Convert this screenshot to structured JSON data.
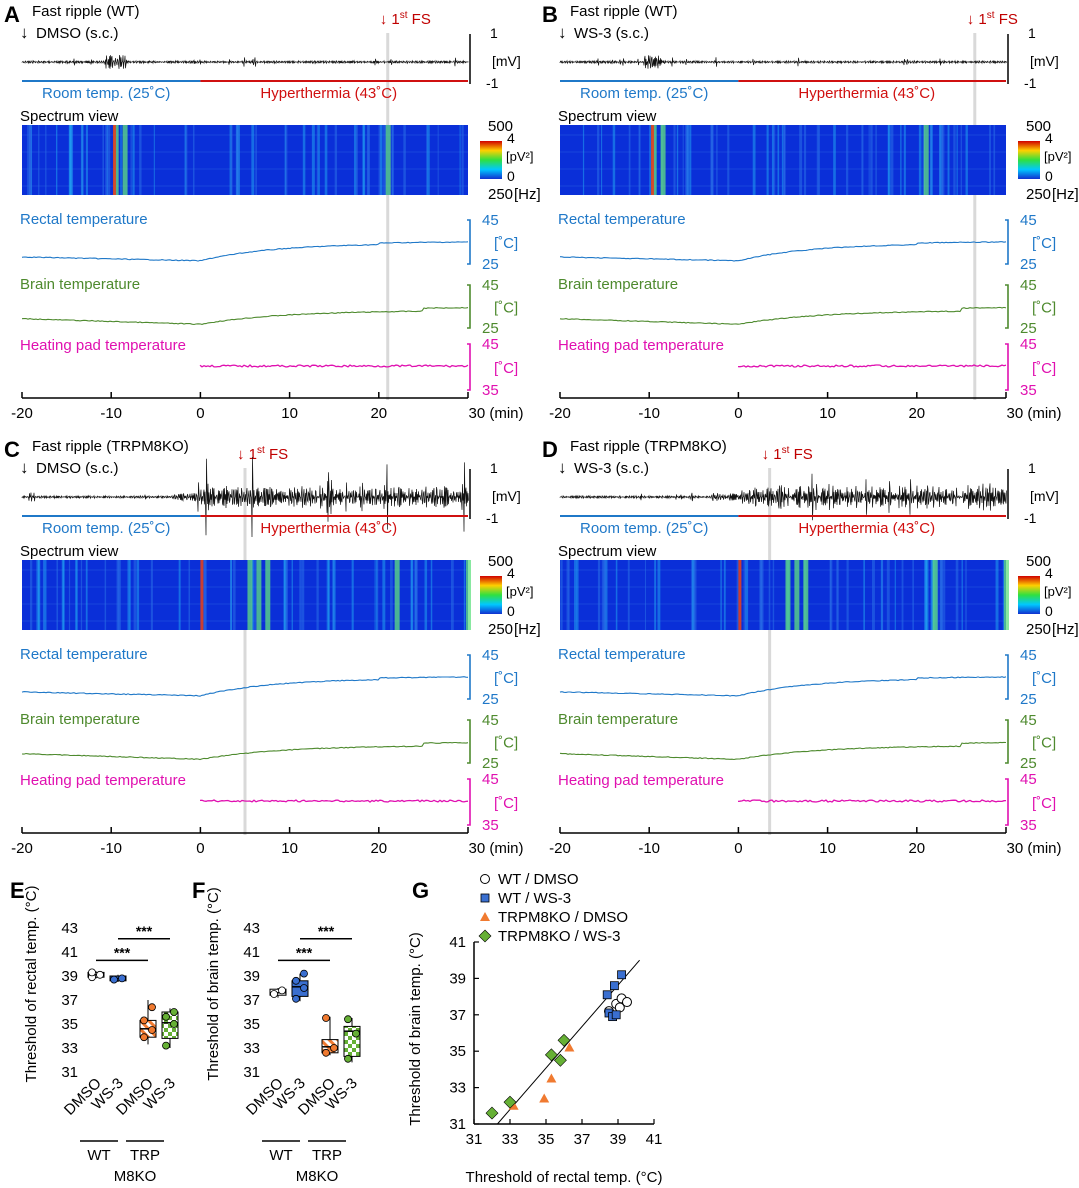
{
  "panels": [
    {
      "letter": "A",
      "title": "Fast ripple (WT)",
      "drug": "DMSO (s.c.)",
      "fs_label": "1",
      "fs_sup": "st",
      "fs_suffix": " FS",
      "fs_time": 21,
      "condition": "wt",
      "scale_mv_top": "1",
      "scale_mv_bottom": "-1",
      "unit_mv": "[mV]",
      "room": "Room temp. (25˚C)",
      "hyper": "Hyperthermia (43˚C)",
      "spectrum_title": "Spectrum view",
      "spec_top": "500",
      "spec_bottom": "250",
      "spec_unit": "[Hz]",
      "cbar_top": "4",
      "cbar_bottom": "0",
      "cbar_unit": "[pV²]",
      "rectal": "Rectal temperature",
      "brain": "Brain temperature",
      "pad": "Heating pad temperature",
      "t45": "45",
      "t25": "25",
      "t35": "35",
      "deg": "[˚C]",
      "x_ticks": [
        "-20",
        "-10",
        "0",
        "10",
        "20",
        "30 (min)"
      ]
    },
    {
      "letter": "B",
      "title": "Fast ripple (WT)",
      "drug": "WS-3 (s.c.)",
      "fs_label": "1",
      "fs_sup": "st",
      "fs_suffix": " FS",
      "fs_time": 26.5,
      "condition": "wt",
      "scale_mv_top": "1",
      "scale_mv_bottom": "-1",
      "unit_mv": "[mV]",
      "room": "Room temp. (25˚C)",
      "hyper": "Hyperthermia (43˚C)",
      "spectrum_title": "Spectrum view",
      "spec_top": "500",
      "spec_bottom": "250",
      "spec_unit": "[Hz]",
      "cbar_top": "4",
      "cbar_bottom": "0",
      "cbar_unit": "[pV²]",
      "rectal": "Rectal temperature",
      "brain": "Brain temperature",
      "pad": "Heating pad temperature",
      "t45": "45",
      "t25": "25",
      "t35": "35",
      "deg": "[˚C]",
      "x_ticks": [
        "-20",
        "-10",
        "0",
        "10",
        "20",
        "30 (min)"
      ]
    },
    {
      "letter": "C",
      "title": "Fast ripple (TRPM8KO)",
      "drug": "DMSO (s.c.)",
      "fs_label": "1",
      "fs_sup": "st",
      "fs_suffix": " FS",
      "fs_time": 5,
      "condition": "ko",
      "scale_mv_top": "1",
      "scale_mv_bottom": "-1",
      "unit_mv": "[mV]",
      "room": "Room temp. (25˚C)",
      "hyper": "Hyperthermia (43˚C)",
      "spectrum_title": "Spectrum view",
      "spec_top": "500",
      "spec_bottom": "250",
      "spec_unit": "[Hz]",
      "cbar_top": "4",
      "cbar_bottom": "0",
      "cbar_unit": "[pV²]",
      "rectal": "Rectal temperature",
      "brain": "Brain temperature",
      "pad": "Heating pad temperature",
      "t45": "45",
      "t25": "25",
      "t35": "35",
      "deg": "[˚C]",
      "x_ticks": [
        "-20",
        "-10",
        "0",
        "10",
        "20",
        "30 (min)"
      ]
    },
    {
      "letter": "D",
      "title": "Fast ripple (TRPM8KO)",
      "drug": "WS-3 (s.c.)",
      "fs_label": "1",
      "fs_sup": "st",
      "fs_suffix": " FS",
      "fs_time": 3.5,
      "condition": "ko",
      "scale_mv_top": "1",
      "scale_mv_bottom": "-1",
      "unit_mv": "[mV]",
      "room": "Room temp. (25˚C)",
      "hyper": "Hyperthermia (43˚C)",
      "spectrum_title": "Spectrum view",
      "spec_top": "500",
      "spec_bottom": "250",
      "spec_unit": "[Hz]",
      "cbar_top": "4",
      "cbar_bottom": "0",
      "cbar_unit": "[pV²]",
      "rectal": "Rectal temperature",
      "brain": "Brain temperature",
      "pad": "Heating pad temperature",
      "t45": "45",
      "t25": "25",
      "t35": "35",
      "deg": "[˚C]",
      "x_ticks": [
        "-20",
        "-10",
        "0",
        "10",
        "20",
        "30 (min)"
      ]
    }
  ],
  "colors": {
    "rectal": "#1f78c8",
    "brain": "#4e8a2e",
    "pad": "#e010b0",
    "hyper": "#d01010",
    "room": "#1f78c8",
    "fs": "#c00000",
    "spectrum_bg": "#0a2fd8"
  },
  "chart_data": [
    {
      "type": "box",
      "letter": "E",
      "ylabel": "Threshold of rectal temp. (°C)",
      "ylim": [
        31,
        43
      ],
      "yticks": [
        "31",
        "33",
        "35",
        "37",
        "39",
        "41",
        "43"
      ],
      "categories": [
        "DMSO",
        "WS-3",
        "DMSO",
        "WS-3"
      ],
      "group_labels": [
        "WT",
        "TRP",
        "M8KO"
      ],
      "significance": [
        "***",
        "***"
      ],
      "boxes": [
        {
          "name": "WT / DMSO",
          "q1": 38.9,
          "median": 39.1,
          "q3": 39.3,
          "min": 38.8,
          "max": 39.4,
          "points": [
            38.9,
            39.1,
            39.3
          ]
        },
        {
          "name": "WT / WS-3",
          "q1": 38.6,
          "median": 38.8,
          "q3": 39.0,
          "min": 38.5,
          "max": 39.1,
          "points": [
            38.7,
            38.8
          ]
        },
        {
          "name": "TRPM8KO / DMSO",
          "q1": 33.9,
          "median": 34.6,
          "q3": 35.3,
          "min": 33.3,
          "max": 37.0,
          "points": [
            33.9,
            34.5,
            35.3,
            36.4
          ]
        },
        {
          "name": "TRPM8KO / WS-3",
          "q1": 33.8,
          "median": 35.1,
          "q3": 36.0,
          "min": 33.0,
          "max": 36.3,
          "points": [
            33.2,
            35.0,
            35.6,
            36.0
          ]
        }
      ]
    },
    {
      "type": "box",
      "letter": "F",
      "ylabel": "Threshold of brain temp. (°C)",
      "ylim": [
        31,
        43
      ],
      "yticks": [
        "31",
        "33",
        "35",
        "37",
        "39",
        "41",
        "43"
      ],
      "categories": [
        "DMSO",
        "WS-3",
        "DMSO",
        "WS-3"
      ],
      "group_labels": [
        "WT",
        "TRP",
        "M8KO"
      ],
      "significance": [
        "***",
        "***"
      ],
      "boxes": [
        {
          "name": "WT / DMSO",
          "q1": 37.4,
          "median": 37.6,
          "q3": 37.9,
          "min": 37.2,
          "max": 38.0,
          "points": [
            37.5,
            37.8
          ]
        },
        {
          "name": "WT / WS-3",
          "q1": 37.3,
          "median": 38.1,
          "q3": 38.6,
          "min": 36.9,
          "max": 39.2,
          "points": [
            37.1,
            38.0,
            38.6,
            39.2
          ]
        },
        {
          "name": "TRPM8KO / DMSO",
          "q1": 32.6,
          "median": 33.1,
          "q3": 33.7,
          "min": 32.4,
          "max": 35.6,
          "points": [
            32.6,
            33.0,
            35.5
          ]
        },
        {
          "name": "TRPM8KO / WS-3",
          "q1": 32.3,
          "median": 34.4,
          "q3": 34.8,
          "min": 31.8,
          "max": 35.5,
          "points": [
            32.1,
            34.2,
            35.4
          ]
        }
      ]
    },
    {
      "type": "scatter",
      "letter": "G",
      "xlabel": "Threshold of rectal temp. (°C)",
      "ylabel": "Threshold of brain temp. (°C)",
      "xlim": [
        31,
        41
      ],
      "ylim": [
        31,
        41
      ],
      "xticks": [
        "31",
        "33",
        "35",
        "37",
        "39",
        "41"
      ],
      "yticks": [
        "31",
        "33",
        "35",
        "37",
        "39",
        "41"
      ],
      "fit_line": [
        [
          32.3,
          31.0
        ],
        [
          40.2,
          40.0
        ]
      ],
      "series": [
        {
          "name": "WT / DMSO",
          "marker": "circle",
          "color": "#ffffff",
          "points": [
            [
              38.5,
              37.2
            ],
            [
              38.9,
              37.6
            ],
            [
              39.2,
              37.9
            ],
            [
              39.5,
              37.7
            ],
            [
              39.1,
              37.4
            ]
          ]
        },
        {
          "name": "WT / WS-3",
          "marker": "square",
          "color": "#3a6fd0",
          "points": [
            [
              38.4,
              38.1
            ],
            [
              38.8,
              38.6
            ],
            [
              39.2,
              39.2
            ],
            [
              38.5,
              37.1
            ],
            [
              38.7,
              36.9
            ],
            [
              38.9,
              37.0
            ]
          ]
        },
        {
          "name": "TRPM8KO / DMSO",
          "marker": "triangle",
          "color": "#f07a30",
          "points": [
            [
              33.2,
              32.0
            ],
            [
              34.9,
              32.4
            ],
            [
              35.3,
              33.5
            ],
            [
              36.3,
              35.2
            ]
          ]
        },
        {
          "name": "TRPM8KO / WS-3",
          "marker": "diamond",
          "color": "#66b035",
          "points": [
            [
              32.0,
              31.6
            ],
            [
              33.0,
              32.2
            ],
            [
              35.3,
              34.8
            ],
            [
              35.8,
              34.5
            ],
            [
              36.0,
              35.6
            ]
          ]
        }
      ]
    }
  ]
}
